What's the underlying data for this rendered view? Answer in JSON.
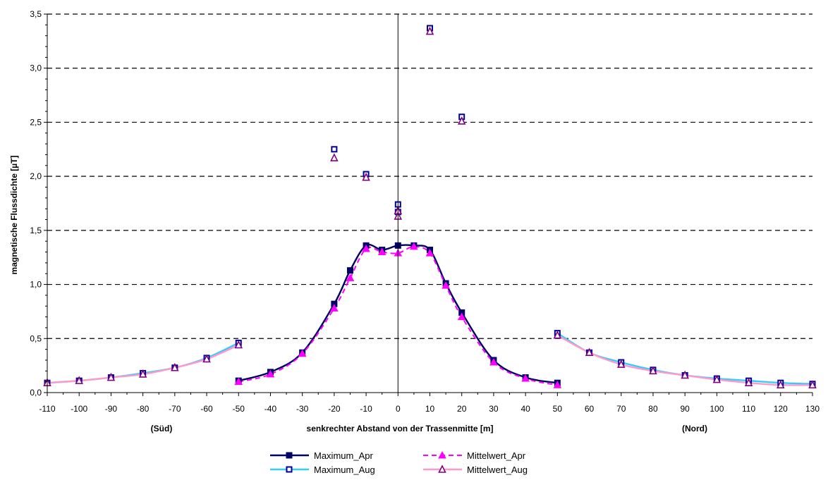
{
  "chart_data": {
    "type": "line",
    "ylabel": "magnetische Flussdichte [µT]",
    "xlabel": "senkrechter Abstand von der Trassenmitte [m]",
    "side_labels": {
      "left": "(Süd)",
      "right": "(Nord)"
    },
    "xlim": [
      -110,
      130
    ],
    "ylim": [
      0,
      3.5
    ],
    "x_ticks": [
      -110,
      -100,
      -90,
      -80,
      -70,
      -60,
      -50,
      -40,
      -30,
      -20,
      -10,
      0,
      10,
      20,
      30,
      40,
      50,
      60,
      70,
      80,
      90,
      100,
      110,
      120,
      130
    ],
    "x_tick_labels": [
      "-110",
      "-100",
      "-90",
      "-80",
      "-70",
      "-60",
      "-50",
      "-40",
      "-30",
      "-20",
      "-10",
      "0",
      "10",
      "20",
      "30",
      "40",
      "50",
      "60",
      "70",
      "80",
      "90",
      "100",
      "110",
      "120",
      "130"
    ],
    "y_ticks": [
      0,
      0.5,
      1.0,
      1.5,
      2.0,
      2.5,
      3.0,
      3.5
    ],
    "y_tick_labels": [
      "0,0",
      "0,5",
      "1,0",
      "1,5",
      "2,0",
      "2,5",
      "3,0",
      "3,5"
    ],
    "grid": "horizontal dashed",
    "legend_position": "bottom",
    "colors": {
      "maximum_apr": "#000066",
      "maximum_aug": "#33ccff",
      "mittelwert_apr": "#ff00ff",
      "mittelwert_aug": "#ff99cc",
      "aug_markers_max": "#000099",
      "aug_markers_mittel": "#800080"
    },
    "series": [
      {
        "name": "Maximum_Apr",
        "segments": [
          {
            "x": [
              -50,
              -40,
              -30,
              -20,
              -15,
              -10,
              -5,
              0,
              5,
              10,
              15,
              20,
              30,
              40,
              50
            ],
            "y": [
              0.11,
              0.19,
              0.37,
              0.82,
              1.13,
              1.36,
              1.32,
              1.36,
              1.36,
              1.32,
              1.01,
              0.74,
              0.3,
              0.14,
              0.09
            ]
          }
        ]
      },
      {
        "name": "Maximum_Aug",
        "segments": [
          {
            "x": [
              -110,
              -100,
              -90,
              -80,
              -70,
              -60,
              -50
            ],
            "y": [
              0.09,
              0.11,
              0.14,
              0.18,
              0.23,
              0.32,
              0.46
            ]
          },
          {
            "x": [
              50,
              60,
              70,
              80,
              90,
              100,
              110,
              120,
              130
            ],
            "y": [
              0.55,
              0.37,
              0.28,
              0.21,
              0.16,
              0.13,
              0.11,
              0.09,
              0.08
            ]
          }
        ],
        "points": {
          "x": [
            -20,
            -10,
            0,
            0,
            10,
            20
          ],
          "y": [
            2.25,
            2.02,
            1.74,
            1.67,
            3.37,
            2.55
          ]
        }
      },
      {
        "name": "Mittelwert_Apr",
        "segments": [
          {
            "x": [
              -50,
              -40,
              -30,
              -20,
              -15,
              -10,
              -5,
              0,
              5,
              10,
              15,
              20,
              30,
              40,
              50
            ],
            "y": [
              0.1,
              0.17,
              0.36,
              0.78,
              1.06,
              1.33,
              1.3,
              1.29,
              1.35,
              1.29,
              0.99,
              0.7,
              0.28,
              0.13,
              0.07
            ]
          }
        ]
      },
      {
        "name": "Mittelwert_Aug",
        "segments": [
          {
            "x": [
              -110,
              -100,
              -90,
              -80,
              -70,
              -60,
              -50
            ],
            "y": [
              0.09,
              0.11,
              0.14,
              0.17,
              0.23,
              0.31,
              0.44
            ]
          },
          {
            "x": [
              50,
              60,
              70,
              80,
              90,
              100,
              110,
              120,
              130
            ],
            "y": [
              0.53,
              0.37,
              0.26,
              0.2,
              0.16,
              0.12,
              0.09,
              0.07,
              0.07
            ]
          }
        ],
        "points": {
          "x": [
            -20,
            -10,
            0,
            0,
            10,
            20
          ],
          "y": [
            2.17,
            1.99,
            1.68,
            1.63,
            3.34,
            2.51
          ]
        }
      }
    ]
  }
}
